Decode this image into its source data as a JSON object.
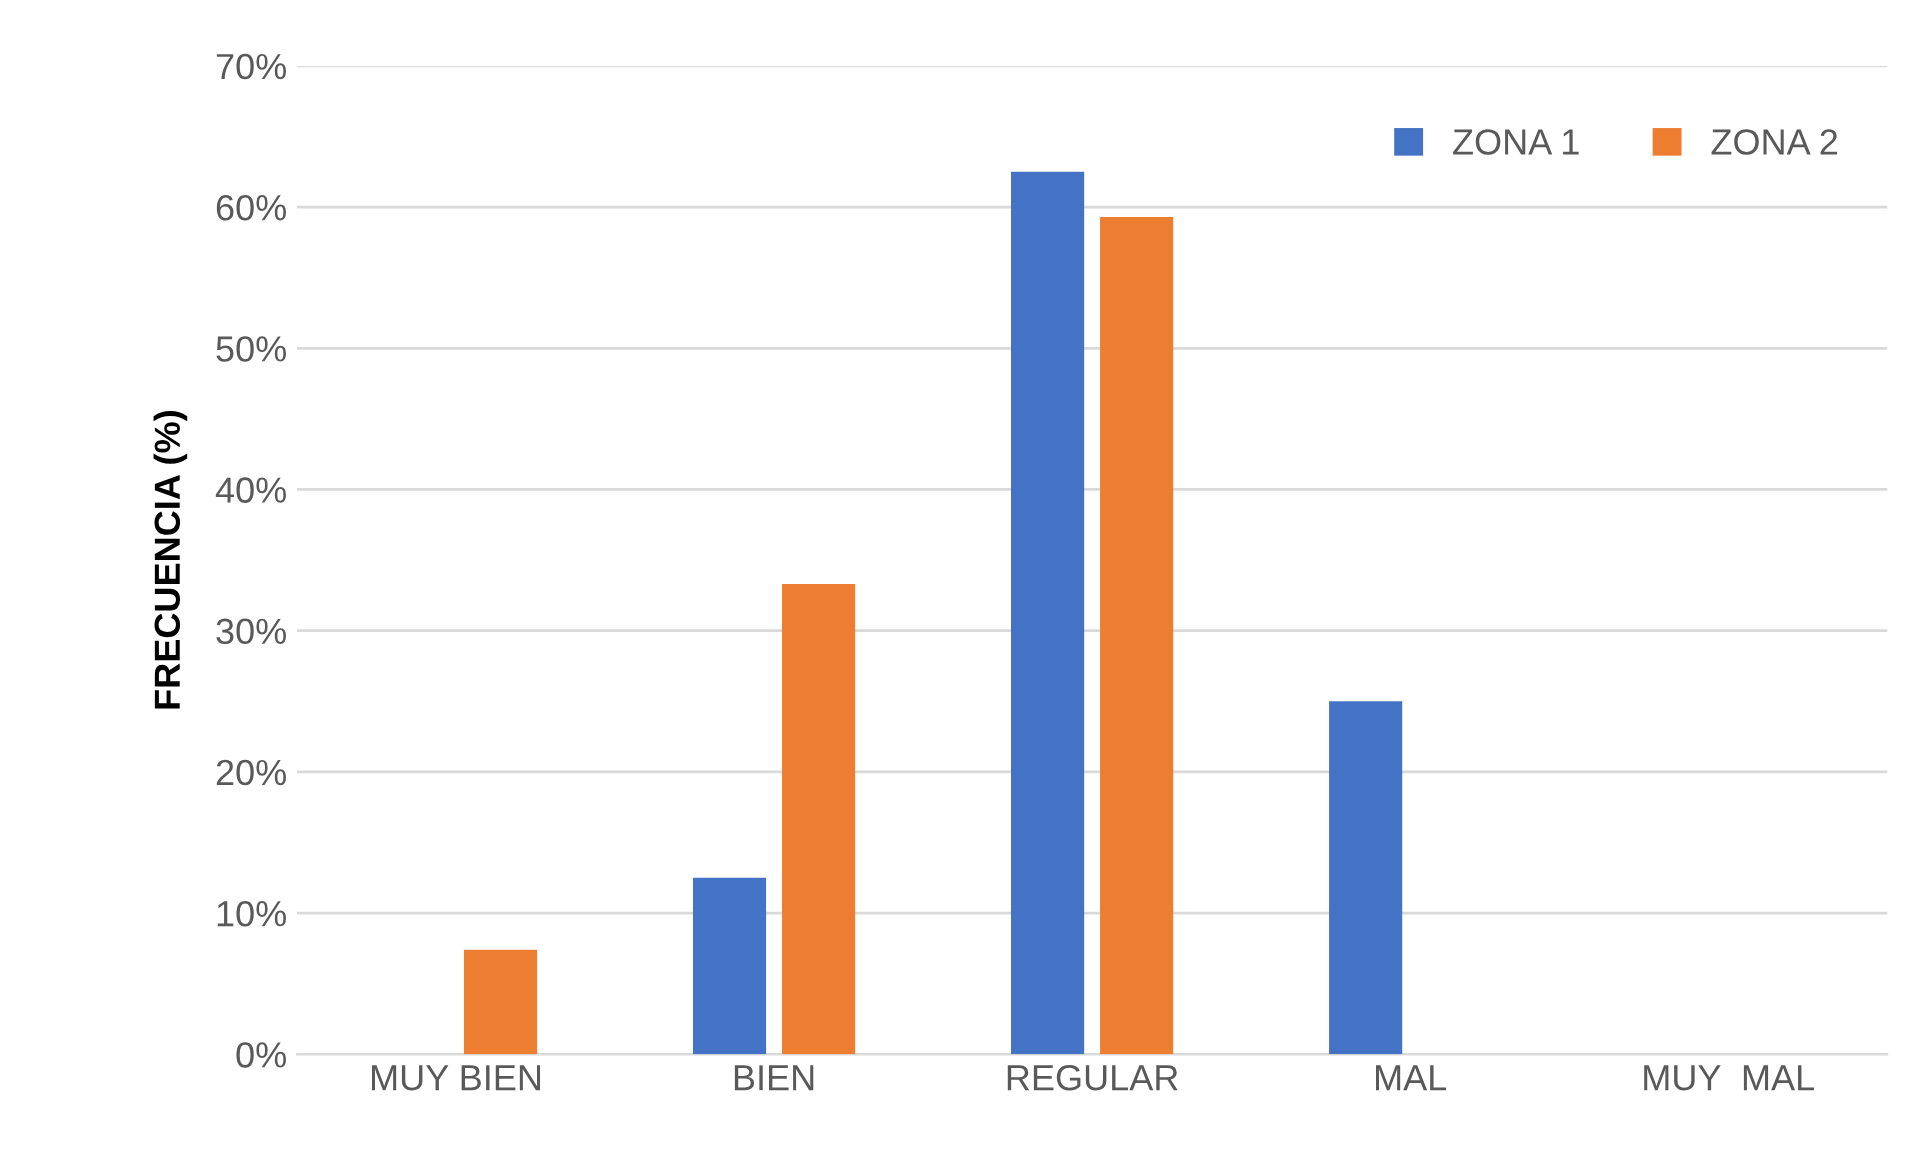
{
  "chart_data": {
    "type": "bar",
    "ylabel": "FRECUENCIA (%)",
    "categories": [
      "MUY BIEN",
      "BIEN",
      "REGULAR",
      "MAL",
      "MUY  MAL"
    ],
    "series": [
      {
        "name": "ZONA 1",
        "color": "#4472c4",
        "values": [
          0,
          12.5,
          62.5,
          25,
          0
        ]
      },
      {
        "name": "ZONA 2",
        "color": "#ed7d31",
        "values": [
          7.4,
          33.3,
          59.3,
          0,
          0
        ]
      }
    ],
    "ylim": [
      0,
      70
    ],
    "yticks": [
      {
        "value": 0,
        "label": "0%"
      },
      {
        "value": 10,
        "label": "10%"
      },
      {
        "value": 20,
        "label": "20%"
      },
      {
        "value": 30,
        "label": "30%"
      },
      {
        "value": 40,
        "label": "40%"
      },
      {
        "value": 50,
        "label": "50%"
      },
      {
        "value": 60,
        "label": "60%"
      },
      {
        "value": 70,
        "label": "70%"
      }
    ],
    "grid": "y",
    "legend": "top right"
  }
}
